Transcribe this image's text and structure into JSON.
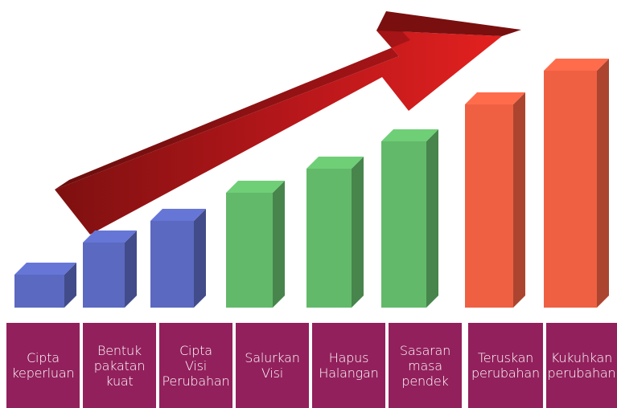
{
  "colors": {
    "phase1": "#5b69c0",
    "phase2": "#63b96a",
    "phase3": "#ef6043",
    "arrow": "#c4151c",
    "label_bg": "#92205c",
    "label_text": "#ffffff"
  },
  "diagram": {
    "arrow_direction": "up-right",
    "steps": [
      {
        "label": "Cipta\nkeperluan",
        "phase": "phase1",
        "level": 1
      },
      {
        "label": "Bentuk\npakatan\nkuat",
        "phase": "phase1",
        "level": 2
      },
      {
        "label": "Cipta\nVisi\nPerubahan",
        "phase": "phase1",
        "level": 3
      },
      {
        "label": "Salurkan\nVisi",
        "phase": "phase2",
        "level": 4
      },
      {
        "label": "Hapus\nHalangan",
        "phase": "phase2",
        "level": 5
      },
      {
        "label": "Sasaran\nmasa\npendek",
        "phase": "phase2",
        "level": 6
      },
      {
        "label": "Teruskan\nperubahan",
        "phase": "phase3",
        "level": 7
      },
      {
        "label": "Kukuhkan\nperubahan",
        "phase": "phase3",
        "level": 8
      }
    ]
  }
}
